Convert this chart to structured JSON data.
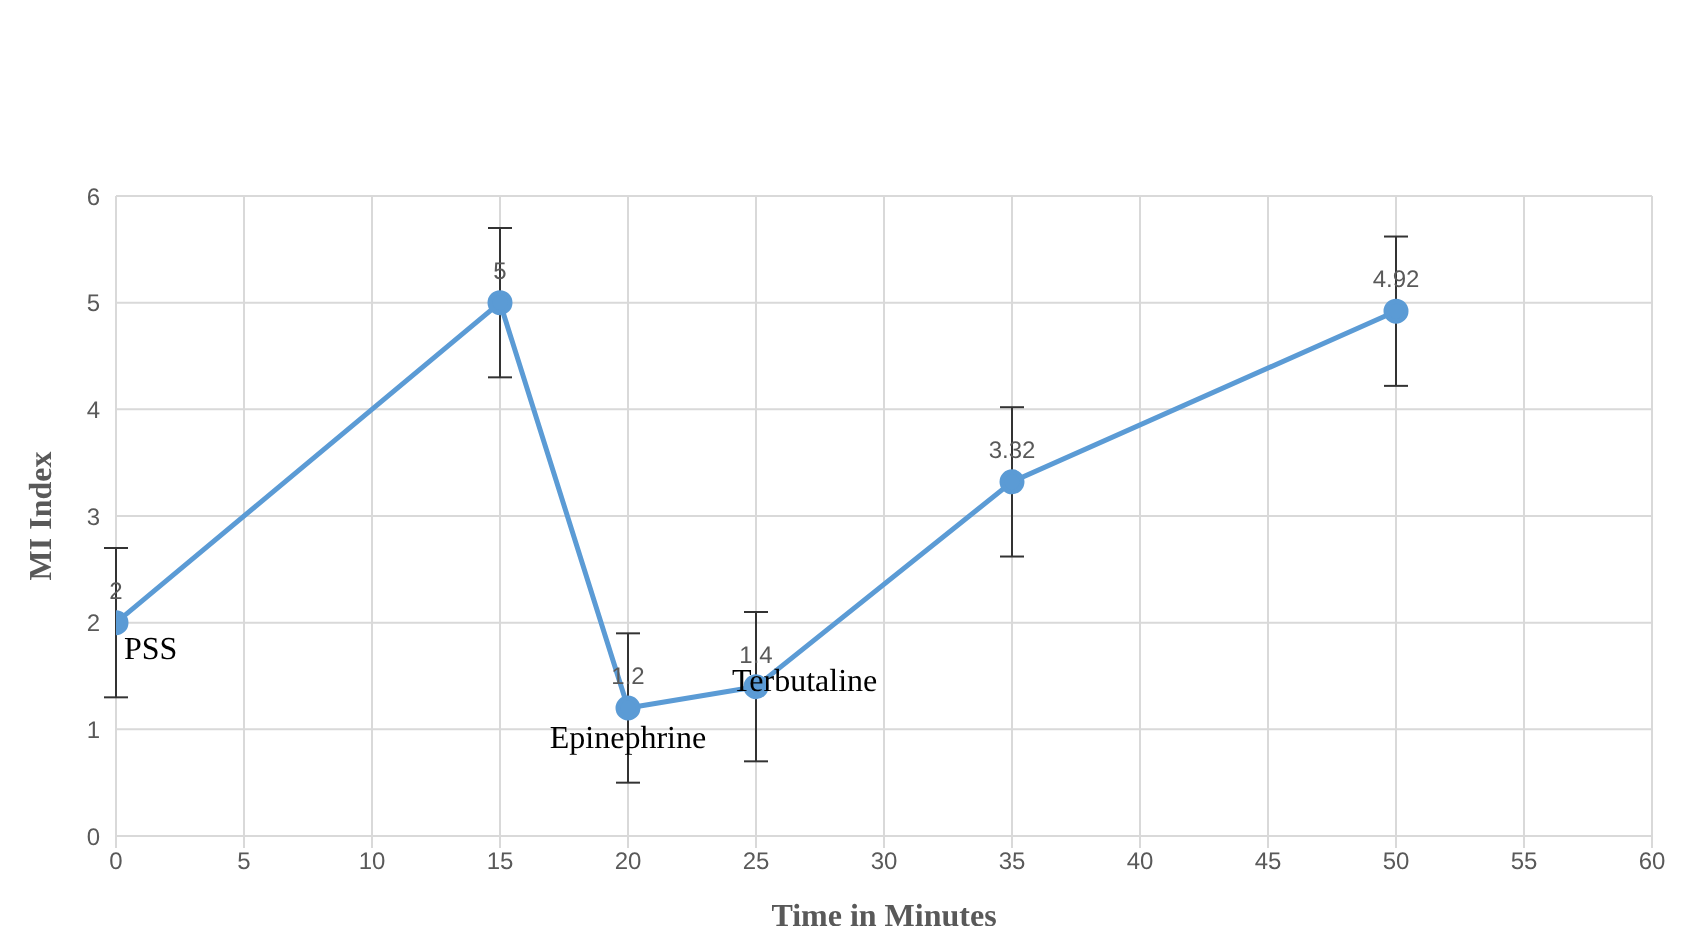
{
  "chart_data": {
    "type": "line",
    "xlabel": "Time in Minutes",
    "ylabel": "MI Index",
    "x": [
      0,
      15,
      20,
      25,
      35,
      50
    ],
    "series": [
      {
        "color": "#5b9bd5",
        "values": [
          2,
          5,
          1.2,
          1.4,
          3.32,
          4.92
        ],
        "errors": [
          0.7,
          0.7,
          0.7,
          0.7,
          0.7,
          0.7
        ]
      }
    ],
    "xlim": [
      0,
      60
    ],
    "xticks": [
      0,
      5,
      10,
      15,
      20,
      25,
      30,
      35,
      40,
      45,
      50,
      55,
      60
    ],
    "ylim": [
      0,
      6
    ],
    "yticks": [
      0,
      1,
      2,
      3,
      4,
      5,
      6
    ],
    "grid": true,
    "marker": "circle",
    "line_style": "solid",
    "data_labels": true,
    "annotations": [
      {
        "text": "PSS",
        "x": 0,
        "y": 2
      },
      {
        "text": "Epinephrine",
        "x": 20,
        "y": 1.2
      },
      {
        "text": "Terbutaline",
        "x": 25,
        "y": 1.4
      }
    ]
  }
}
